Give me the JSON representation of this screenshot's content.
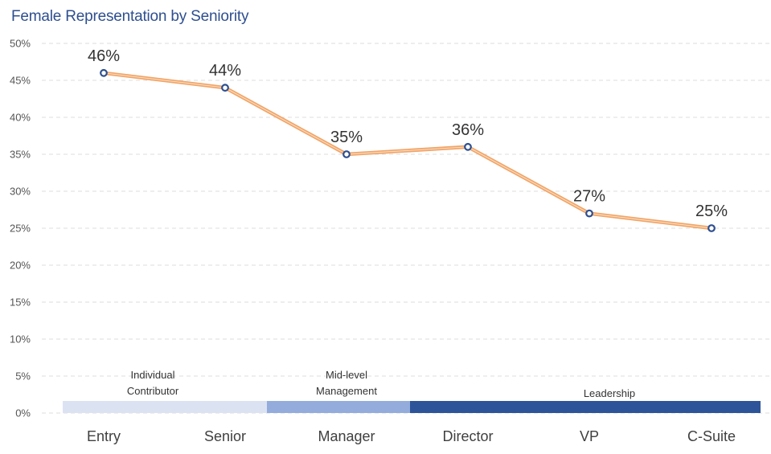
{
  "chart_data": {
    "type": "line",
    "title": "Female Representation by Seniority",
    "categories": [
      "Entry",
      "Senior",
      "Manager",
      "Director",
      "VP",
      "C-Suite"
    ],
    "series": [
      {
        "values": [
          46,
          44,
          35,
          36,
          27,
          25
        ]
      }
    ],
    "data_labels": [
      "46%",
      "44%",
      "35%",
      "36%",
      "27%",
      "25%"
    ],
    "y_ticks": [
      "0%",
      "5%",
      "10%",
      "15%",
      "20%",
      "25%",
      "30%",
      "35%",
      "40%",
      "45%",
      "50%"
    ],
    "ylim": [
      0,
      50
    ],
    "grid": true,
    "bands": [
      {
        "label_lines": [
          "Individual",
          "Contributor"
        ],
        "color": "#dbe3f3"
      },
      {
        "label_lines": [
          "Mid-level",
          "Management"
        ],
        "color": "#93acdc"
      },
      {
        "label_lines": [
          "Leadership"
        ],
        "color": "#2d5498"
      }
    ],
    "colors": {
      "line": "#f0a468",
      "line_inner": "#fbd9b8",
      "marker_fill": "#ffffff",
      "marker_stroke": "#2e4f8f",
      "title": "#2e4f8f",
      "grid": "#dddddd"
    }
  }
}
